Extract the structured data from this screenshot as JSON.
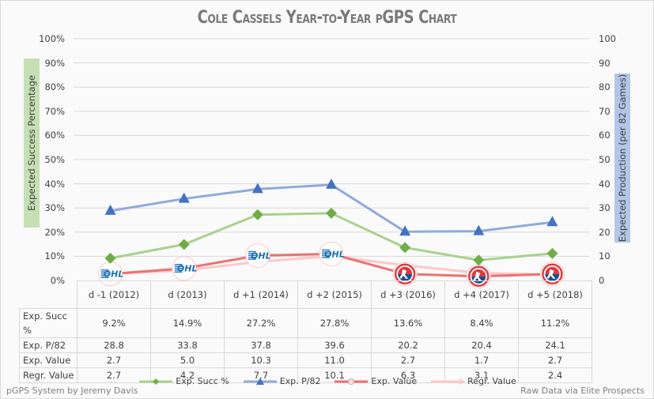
{
  "chart_data": {
    "type": "line",
    "title": "Cole Cassels Year-to-Year pGPS Chart",
    "categories": [
      "d -1 (2012)",
      "d (2013)",
      "d +1 (2014)",
      "d +2 (2015)",
      "d +3 (2016)",
      "d +4 (2017)",
      "d +5 (2018)"
    ],
    "ylabel_left": "Expected Success Percentage",
    "ylabel_right": "Expected Production (per 82 Games)",
    "ylim_left": [
      0,
      100
    ],
    "ylim_right": [
      0,
      100
    ],
    "yticks_left": [
      "0%",
      "10%",
      "20%",
      "30%",
      "40%",
      "50%",
      "60%",
      "70%",
      "80%",
      "90%",
      "100%"
    ],
    "yticks_right": [
      "0",
      "10",
      "20",
      "30",
      "40",
      "50",
      "60",
      "70",
      "80",
      "90",
      "100"
    ],
    "grid": true,
    "legend_position": "bottom",
    "series": [
      {
        "name": "Exp. Succ %",
        "axis": "left",
        "color": "#70ad47",
        "line_color": "#a9d18e",
        "marker": "diamond",
        "values": [
          9.2,
          14.9,
          27.2,
          27.8,
          13.6,
          8.4,
          11.2
        ],
        "labels": [
          "9.2%",
          "14.9%",
          "27.2%",
          "27.8%",
          "13.6%",
          "8.4%",
          "11.2%"
        ]
      },
      {
        "name": "Exp. P/82",
        "axis": "right",
        "color": "#4472c4",
        "line_color": "#8faadc",
        "marker": "triangle",
        "values": [
          28.8,
          33.8,
          37.8,
          39.6,
          20.2,
          20.4,
          24.1
        ],
        "labels": [
          "28.8",
          "33.8",
          "37.8",
          "39.6",
          "20.2",
          "20.4",
          "24.1"
        ]
      },
      {
        "name": "Exp. Value",
        "axis": "right",
        "color": "#ed7d7d",
        "line_color": "#f07070",
        "marker": "league-logo",
        "values": [
          2.7,
          5.0,
          10.3,
          11.0,
          2.7,
          1.7,
          2.7
        ],
        "labels": [
          "2.7",
          "5.0",
          "10.3",
          "11.0",
          "2.7",
          "1.7",
          "2.7"
        ]
      },
      {
        "name": "Regr. Value",
        "axis": "right",
        "color": "#ffc7c7",
        "line_color": "#ffc7c7",
        "marker": "none",
        "values": [
          2.7,
          4.2,
          7.7,
          10.1,
          6.3,
          3.1,
          2.4
        ],
        "labels": [
          "2.7",
          "4.2",
          "7.7",
          "10.1",
          "6.3",
          "3.1",
          "2.4"
        ]
      }
    ],
    "league_markers": [
      "OHL",
      "OHL",
      "OHL",
      "OHL",
      "AHL",
      "AHL",
      "AHL"
    ],
    "table_row_headers": [
      "Exp. Succ %",
      "Exp. P/82",
      "Exp. Value",
      "Regr. Value"
    ]
  },
  "footer": {
    "left": "pGPS System by Jeremy Davis",
    "right": "Raw Data via Elite Prospects"
  }
}
